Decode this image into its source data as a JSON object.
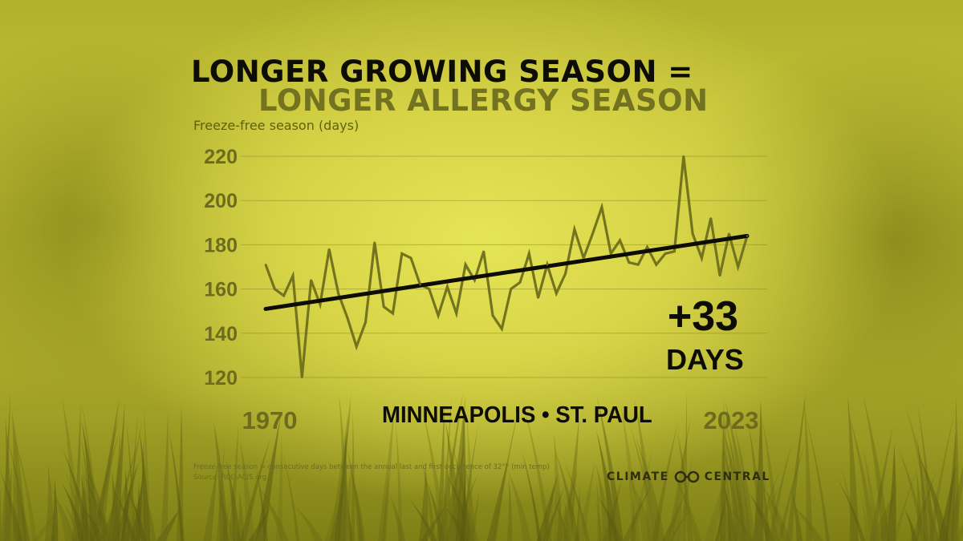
{
  "title": {
    "line1": "LONGER GROWING SEASON =",
    "line2": "LONGER ALLERGY SEASON"
  },
  "location": "MINNEAPOLIS • ST. PAUL",
  "callout": {
    "value": "+33",
    "unit": "DAYS"
  },
  "footnote": "Freeze-free season = consecutive days between the annual last and first occurrence of 32°F (min temp)",
  "source": "Source: RCC-ACIS.org",
  "brand": {
    "left": "CLIMATE",
    "icon": "cc-logo-icon",
    "right": "CENTRAL"
  },
  "colors": {
    "background": "#d6d447",
    "series_line": "#74741f",
    "trend_line": "#0d0d06",
    "title_secondary": "#727220"
  },
  "chart_data": {
    "type": "line",
    "title": "LONGER GROWING SEASON = LONGER ALLERGY SEASON",
    "xlabel": "",
    "ylabel": "Freeze-free season (days)",
    "xlim": [
      1970,
      2023
    ],
    "ylim": [
      120,
      220
    ],
    "yticks": [
      120,
      140,
      160,
      180,
      200,
      220
    ],
    "xtick_labels": [
      "1970",
      "2023"
    ],
    "grid": "horizontal",
    "x": [
      1970,
      1971,
      1972,
      1973,
      1974,
      1975,
      1976,
      1977,
      1978,
      1979,
      1980,
      1981,
      1982,
      1983,
      1984,
      1985,
      1986,
      1987,
      1988,
      1989,
      1990,
      1991,
      1992,
      1993,
      1994,
      1995,
      1996,
      1997,
      1998,
      1999,
      2000,
      2001,
      2002,
      2003,
      2004,
      2005,
      2006,
      2007,
      2008,
      2009,
      2010,
      2011,
      2012,
      2013,
      2014,
      2015,
      2016,
      2017,
      2018,
      2019,
      2020,
      2021,
      2022,
      2023
    ],
    "series": [
      {
        "values": [
          171,
          160,
          157,
          166,
          120,
          164,
          153,
          178,
          158,
          147,
          134,
          145,
          181,
          152,
          149,
          176,
          174,
          162,
          160,
          148,
          161,
          149,
          171,
          164,
          177,
          148,
          142,
          160,
          163,
          176,
          156,
          171,
          158,
          167,
          187,
          174,
          185,
          197,
          176,
          182,
          172,
          171,
          179,
          171,
          176,
          177,
          220,
          185,
          174,
          192,
          166,
          185,
          170,
          184
        ]
      },
      {
        "name": "trend",
        "values_at_ends": [
          151,
          184
        ]
      }
    ]
  }
}
